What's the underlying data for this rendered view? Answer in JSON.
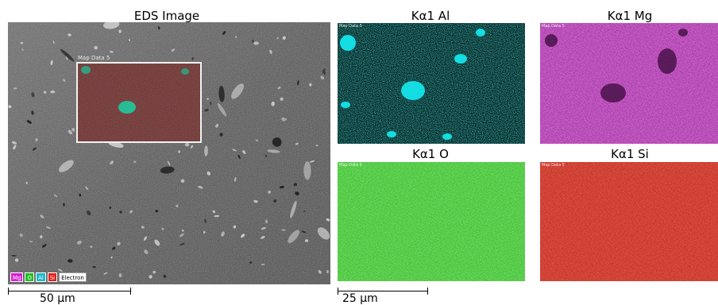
{
  "eds_image": {
    "title": "EDS Image",
    "roi_label": "Map Data 5",
    "legend": [
      {
        "label": "Mg",
        "color": "#d91fd9"
      },
      {
        "label": "O",
        "color": "#1fbf1f"
      },
      {
        "label": "Al",
        "color": "#1fb6c9"
      },
      {
        "label": "Si",
        "color": "#e0201a"
      },
      {
        "label": "Electron",
        "color": "#ffffff"
      }
    ],
    "scale_bar": "50 µm"
  },
  "maps": [
    {
      "id": "al",
      "title": "Kα1 Al",
      "small_label": "Map Data 5",
      "color": "#14e5ec",
      "base": "#02140f"
    },
    {
      "id": "mg",
      "title": "Kα1 Mg",
      "small_label": "Map Data 5",
      "color": "#ff36ff",
      "base": "#3a0a3a"
    },
    {
      "id": "o",
      "title": "Kα1 O",
      "small_label": "Map Data 5",
      "color": "#3bff2e",
      "base": "#0f4a0a"
    },
    {
      "id": "si",
      "title": "Kα1 Si",
      "small_label": "Map Data 5",
      "color": "#ff2a1a",
      "base": "#4a0805"
    }
  ],
  "maps_scale_bar": "25 µm"
}
